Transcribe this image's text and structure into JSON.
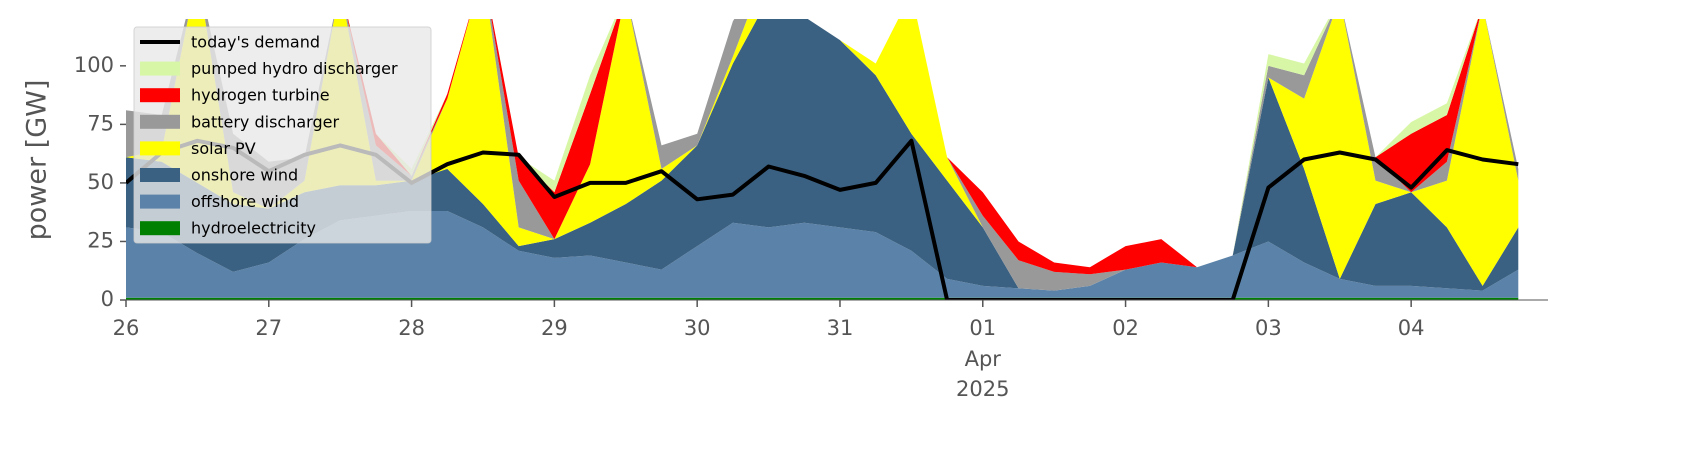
{
  "chart_data": {
    "type": "area",
    "ylabel": "power [GW]",
    "x": [
      "2025-03-26 00:00",
      "2025-03-26 06:00",
      "2025-03-26 12:00",
      "2025-03-26 18:00",
      "2025-03-27 00:00",
      "2025-03-27 06:00",
      "2025-03-27 12:00",
      "2025-03-27 18:00",
      "2025-03-28 00:00",
      "2025-03-28 06:00",
      "2025-03-28 12:00",
      "2025-03-28 18:00",
      "2025-03-29 00:00",
      "2025-03-29 06:00",
      "2025-03-29 12:00",
      "2025-03-29 18:00",
      "2025-03-30 00:00",
      "2025-03-30 06:00",
      "2025-03-30 12:00",
      "2025-03-30 18:00",
      "2025-03-31 00:00",
      "2025-03-31 06:00",
      "2025-03-31 12:00",
      "2025-03-31 18:00",
      "2025-04-01 00:00",
      "2025-04-01 06:00",
      "2025-04-01 12:00",
      "2025-04-01 18:00",
      "2025-04-02 00:00",
      "2025-04-02 06:00",
      "2025-04-02 12:00",
      "2025-04-02 18:00",
      "2025-04-03 00:00",
      "2025-04-03 06:00",
      "2025-04-03 12:00",
      "2025-04-03 18:00",
      "2025-04-04 00:00",
      "2025-04-04 06:00",
      "2025-04-04 12:00",
      "2025-04-04 18:00"
    ],
    "series": [
      {
        "name": "today's demand",
        "type": "line",
        "color": "#000000",
        "values": [
          50,
          63,
          68,
          65,
          55,
          62,
          66,
          62,
          50,
          58,
          63,
          62,
          44,
          50,
          50,
          55,
          43,
          45,
          57,
          53,
          47,
          50,
          68,
          0,
          0,
          0,
          0,
          0,
          0,
          0,
          0,
          0,
          48,
          60,
          63,
          60,
          48,
          64,
          60,
          58
        ]
      },
      {
        "name": "pumped hydro discharger",
        "color": "#d8f7a6",
        "values": [
          0,
          0,
          0,
          0,
          0,
          0,
          0,
          0,
          3,
          0,
          0,
          0,
          5,
          8,
          0,
          0,
          0,
          0,
          0,
          0,
          0,
          0,
          0,
          0,
          0,
          0,
          0,
          0,
          0,
          0,
          0,
          0,
          5,
          5,
          0,
          0,
          5,
          5,
          0,
          0
        ]
      },
      {
        "name": "hydrogen turbine",
        "color": "#ff0000",
        "values": [
          0,
          0,
          0,
          0,
          0,
          0,
          0,
          5,
          0,
          2,
          0,
          10,
          20,
          30,
          0,
          0,
          0,
          0,
          0,
          0,
          0,
          0,
          0,
          0,
          10,
          8,
          4,
          3,
          10,
          10,
          0,
          0,
          0,
          0,
          0,
          0,
          25,
          20,
          0,
          0
        ]
      },
      {
        "name": "battery discharger",
        "color": "#999999",
        "values": [
          20,
          15,
          0,
          25,
          20,
          10,
          0,
          15,
          2,
          0,
          0,
          20,
          0,
          0,
          0,
          10,
          5,
          15,
          0,
          0,
          0,
          0,
          0,
          0,
          5,
          12,
          8,
          5,
          0,
          0,
          0,
          0,
          5,
          10,
          0,
          10,
          0,
          8,
          0,
          5
        ]
      },
      {
        "name": "solar PV",
        "color": "#ffff00",
        "values": [
          0,
          5,
          90,
          5,
          0,
          5,
          85,
          2,
          0,
          30,
          100,
          8,
          0,
          25,
          90,
          5,
          0,
          3,
          15,
          0,
          0,
          5,
          60,
          10,
          0,
          0,
          0,
          0,
          0,
          0,
          0,
          0,
          0,
          30,
          120,
          10,
          0,
          20,
          120,
          20
        ]
      },
      {
        "name": "onshore wind",
        "color": "#3b6182",
        "values": [
          30,
          30,
          30,
          29,
          23,
          20,
          15,
          13,
          13,
          18,
          10,
          2,
          8,
          14,
          25,
          38,
          43,
          68,
          98,
          88,
          80,
          67,
          50,
          42,
          25,
          0,
          0,
          0,
          0,
          0,
          0,
          0,
          70,
          40,
          0,
          35,
          40,
          26,
          2,
          18
        ]
      },
      {
        "name": "offshore wind",
        "color": "#5b83a9",
        "values": [
          30,
          28,
          19,
          11,
          15,
          25,
          33,
          35,
          37,
          37,
          30,
          20,
          17,
          18,
          15,
          12,
          22,
          32,
          30,
          32,
          30,
          28,
          20,
          8,
          5,
          4,
          3,
          5,
          12,
          15,
          13,
          18,
          24,
          15,
          8,
          5,
          5,
          4,
          3,
          12
        ]
      },
      {
        "name": "hydroelectricity",
        "color": "#008000",
        "values": [
          1,
          1,
          1,
          1,
          1,
          1,
          1,
          1,
          1,
          1,
          1,
          1,
          1,
          1,
          1,
          1,
          1,
          1,
          1,
          1,
          1,
          1,
          1,
          1,
          1,
          1,
          1,
          1,
          1,
          1,
          1,
          1,
          1,
          1,
          1,
          1,
          1,
          1,
          1,
          1
        ]
      }
    ],
    "xlim": [
      "2025-03-26 00:00",
      "2025-04-04 23:00"
    ],
    "xticks": [
      {
        "value": "2025-03-26 00:00",
        "label": "26"
      },
      {
        "value": "2025-03-27 00:00",
        "label": "27"
      },
      {
        "value": "2025-03-28 00:00",
        "label": "28"
      },
      {
        "value": "2025-03-29 00:00",
        "label": "29"
      },
      {
        "value": "2025-03-30 00:00",
        "label": "30"
      },
      {
        "value": "2025-03-31 00:00",
        "label": "31"
      },
      {
        "value": "2025-04-01 00:00",
        "label": "01"
      },
      {
        "value": "2025-04-02 00:00",
        "label": "02"
      },
      {
        "value": "2025-04-03 00:00",
        "label": "03"
      },
      {
        "value": "2025-04-04 00:00",
        "label": "04"
      }
    ],
    "x_date_label": {
      "value": "2025-04-01 00:00",
      "lines": [
        "Apr",
        "2025"
      ]
    },
    "ylim": [
      0,
      120
    ],
    "yticks": [
      0,
      25,
      50,
      75,
      100
    ],
    "legend": "upper left"
  }
}
